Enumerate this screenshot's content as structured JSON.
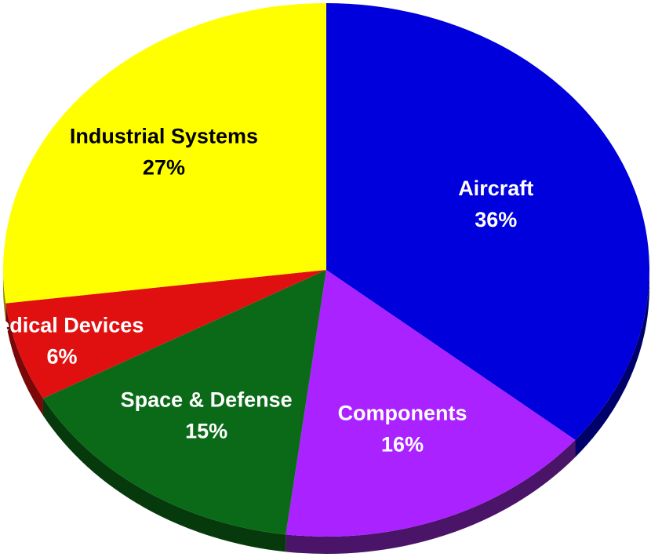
{
  "chart_data": {
    "type": "pie",
    "style": "3d",
    "title": "",
    "slices": [
      {
        "label": "Aircraft",
        "value": 36,
        "value_label": "36%",
        "color": "#0000dd",
        "side_color": "#00006a",
        "label_color": "#ffffff"
      },
      {
        "label": "Components",
        "value": 16,
        "value_label": "16%",
        "color": "#aa22ff",
        "side_color": "#4a1468",
        "label_color": "#ffffff"
      },
      {
        "label": "Space & Defense",
        "value": 15,
        "value_label": "15%",
        "color": "#0a6a18",
        "side_color": "#063a0c",
        "label_color": "#ffffff"
      },
      {
        "label": "Medical Devices",
        "value": 6,
        "value_label": "6%",
        "color": "#e01010",
        "side_color": "#7a0808",
        "label_color": "#ffffff"
      },
      {
        "label": "Industrial Systems",
        "value": 27,
        "value_label": "27%",
        "color": "#ffff00",
        "side_color": "#8a8a00",
        "label_color": "#000000"
      }
    ],
    "start_position": "12 o'clock",
    "direction": "clockwise",
    "legend": "none"
  }
}
